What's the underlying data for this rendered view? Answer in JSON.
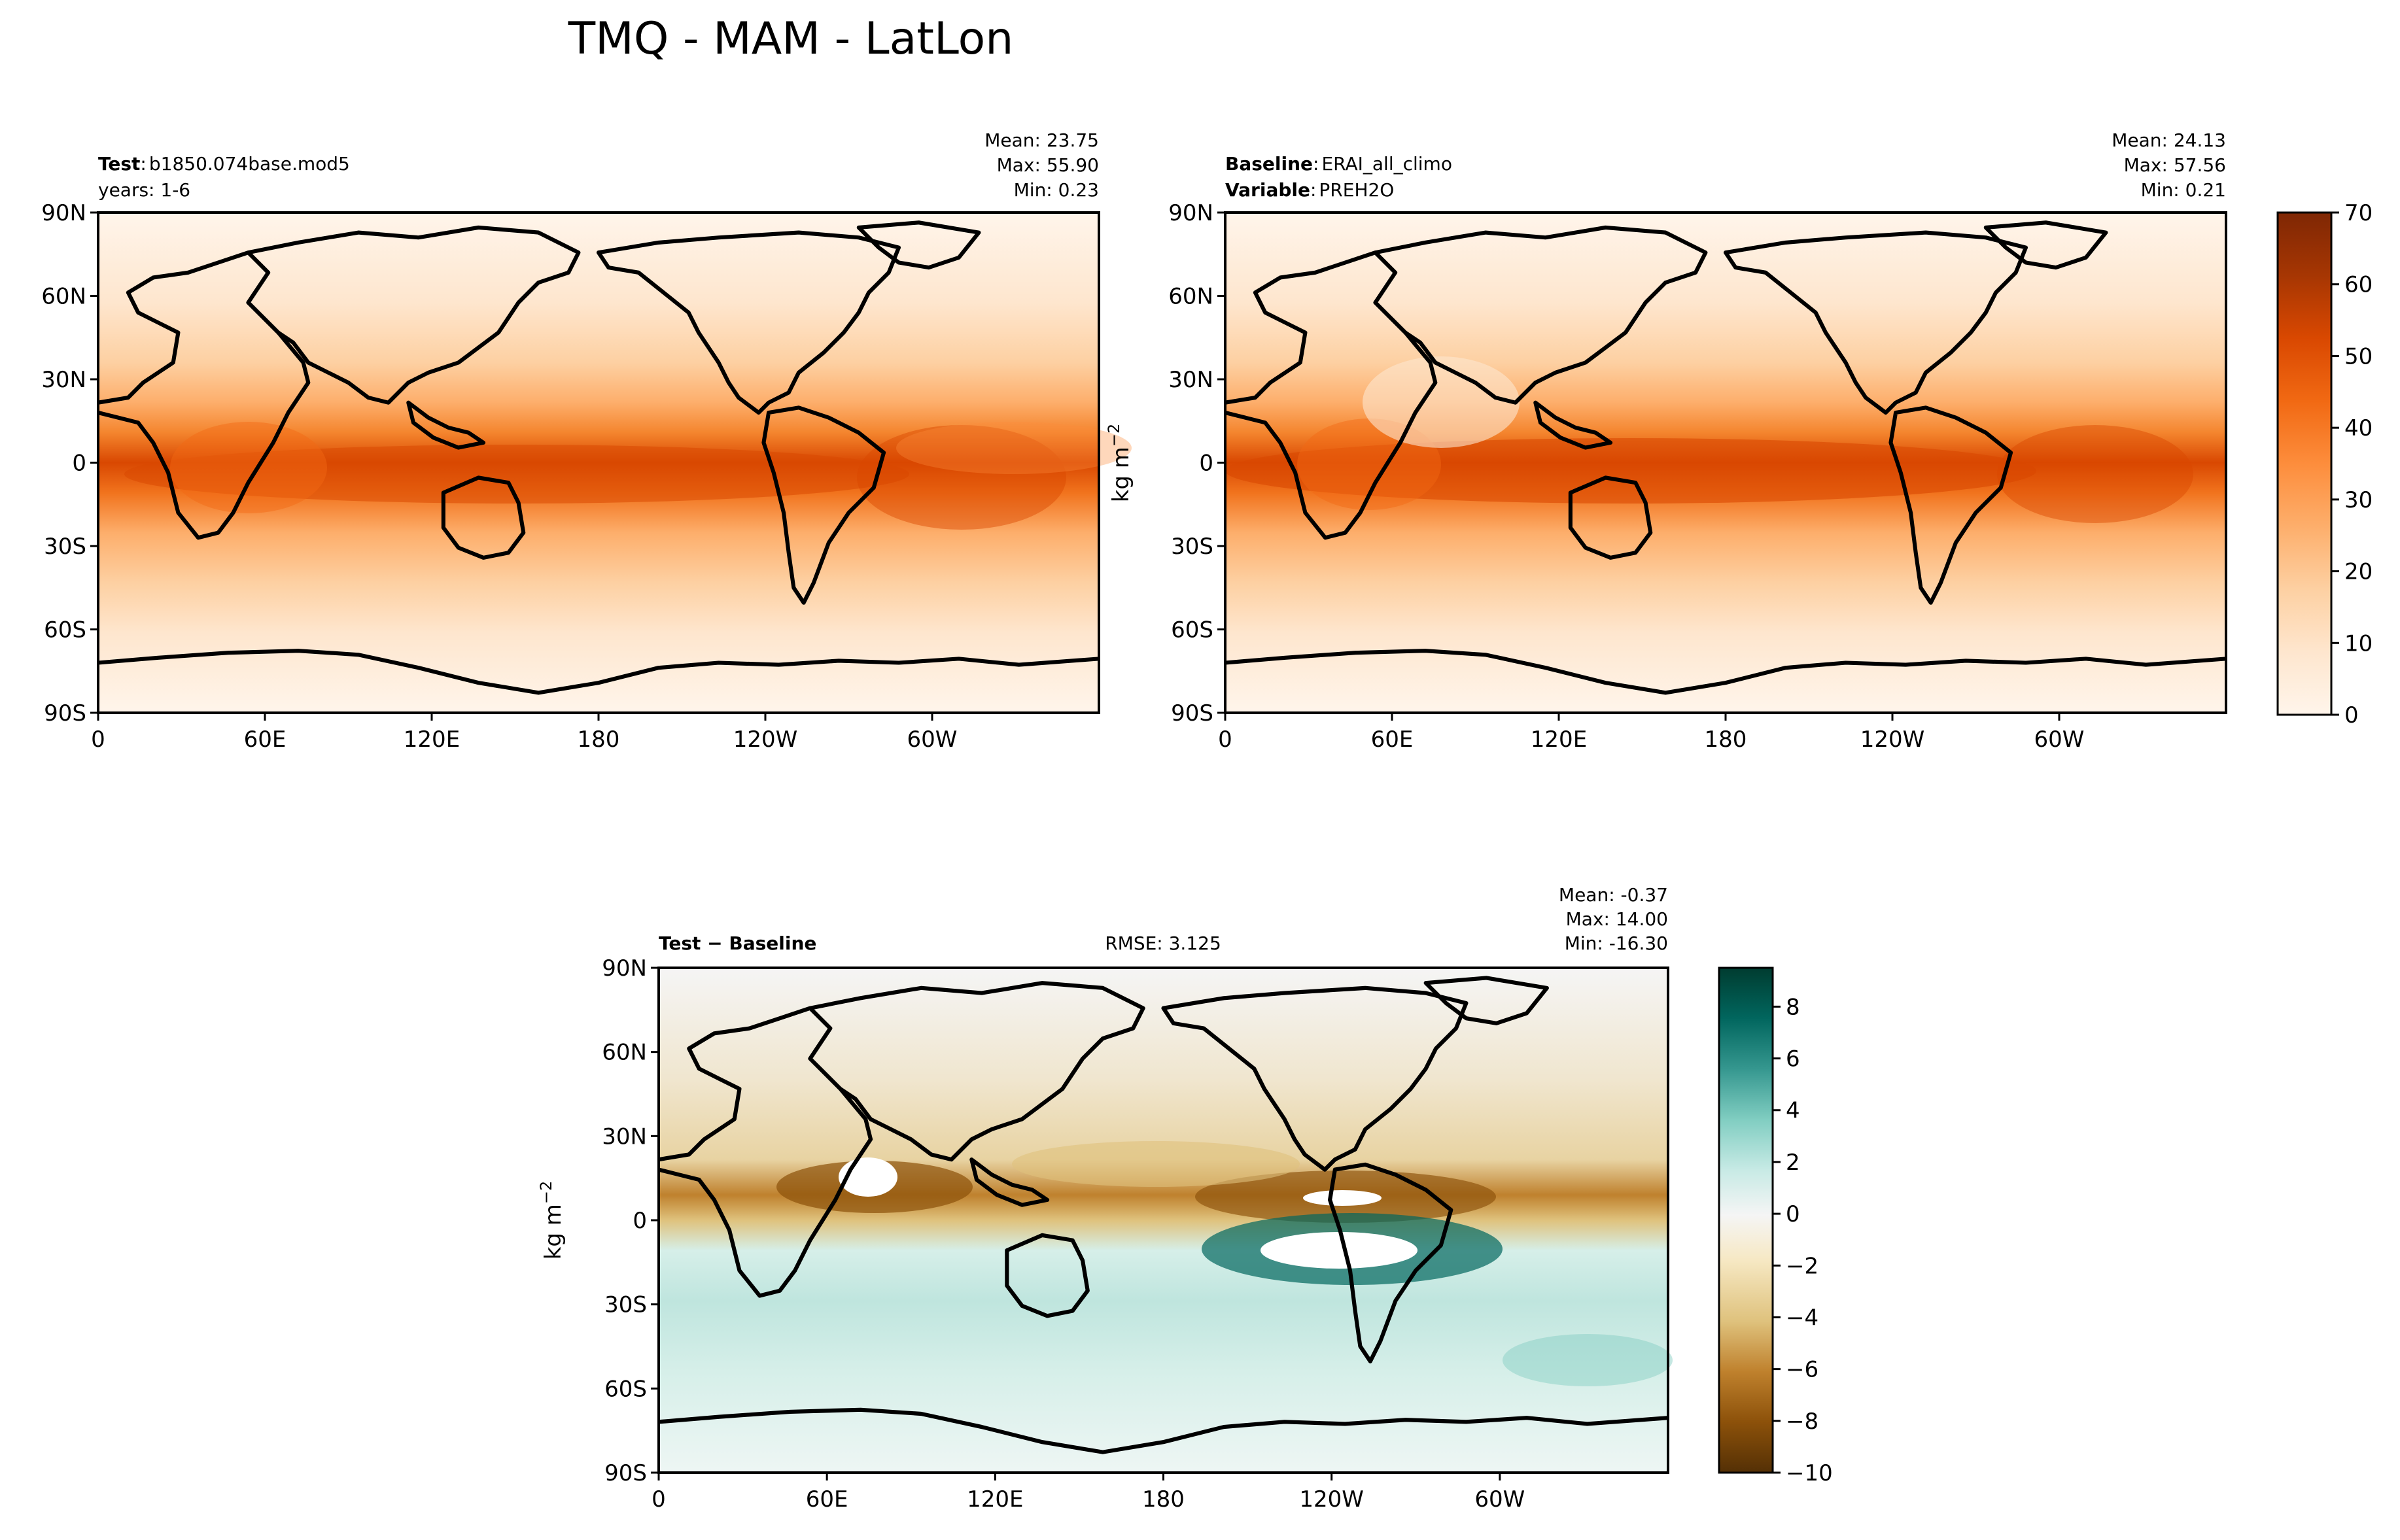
{
  "figure": {
    "title": "TMQ - MAM - LatLon"
  },
  "chart_data": [
    {
      "type": "heatmap",
      "panel": "test",
      "label_bold": "Test",
      "label_sep": ":",
      "label_value": "b1850.074base.mod5",
      "line2": "years: 1-6",
      "stats": [
        "Mean: 23.75",
        "Max: 55.90",
        "Min:  0.23"
      ],
      "x_ticks": [
        "0",
        "60E",
        "120E",
        "180",
        "120W",
        "60W"
      ],
      "x_values": [
        0,
        60,
        120,
        180,
        240,
        300
      ],
      "y_ticks": [
        "90N",
        "60N",
        "30N",
        "0",
        "30S",
        "60S",
        "90S"
      ],
      "y_values": [
        90,
        60,
        30,
        0,
        -30,
        -60,
        -90
      ],
      "xlim": [
        0,
        360
      ],
      "ylim": [
        -90,
        90
      ]
    },
    {
      "type": "heatmap",
      "panel": "baseline",
      "label_bold": "Baseline",
      "label_sep": ":",
      "label_value": "ERAI_all_climo",
      "line2_bold": "Variable",
      "line2_value": "PREH2O",
      "stats": [
        "Mean: 24.13",
        "Max: 57.56",
        "Min:  0.21"
      ],
      "ylabel": "kg m",
      "ylabel_sup": "−2",
      "x_ticks": [
        "0",
        "60E",
        "120E",
        "180",
        "120W",
        "60W"
      ],
      "x_values": [
        0,
        60,
        120,
        180,
        240,
        300
      ],
      "y_ticks": [
        "90N",
        "60N",
        "30N",
        "0",
        "30S",
        "60S",
        "90S"
      ],
      "y_values": [
        90,
        60,
        30,
        0,
        -30,
        -60,
        -90
      ],
      "xlim": [
        0,
        360
      ],
      "ylim": [
        -90,
        90
      ],
      "colorbar": {
        "ticks": [
          "0",
          "10",
          "20",
          "30",
          "40",
          "50",
          "60",
          "70"
        ],
        "values": [
          0,
          10,
          20,
          30,
          40,
          50,
          60,
          70
        ],
        "range": [
          0,
          70
        ],
        "colors": [
          "#fff5eb",
          "#fee6ce",
          "#fdd0a2",
          "#fdae6b",
          "#fd8d3c",
          "#f16913",
          "#d94801",
          "#a63603",
          "#7f2704"
        ]
      }
    },
    {
      "type": "heatmap",
      "panel": "difference",
      "label_bold": "Test − Baseline",
      "rmse": "RMSE: 3.125",
      "stats": [
        "Mean: -0.37",
        "Max: 14.00",
        "Min: -16.30"
      ],
      "ylabel": "kg m",
      "ylabel_sup": "−2",
      "x_ticks": [
        "0",
        "60E",
        "120E",
        "180",
        "120W",
        "60W"
      ],
      "x_values": [
        0,
        60,
        120,
        180,
        240,
        300
      ],
      "y_ticks": [
        "90N",
        "60N",
        "30N",
        "0",
        "30S",
        "60S",
        "90S"
      ],
      "y_values": [
        90,
        60,
        30,
        0,
        -30,
        -60,
        -90
      ],
      "xlim": [
        0,
        360
      ],
      "ylim": [
        -90,
        90
      ],
      "colorbar": {
        "ticks": [
          "−10",
          "−8",
          "−6",
          "−4",
          "−2",
          "0",
          "2",
          "4",
          "6",
          "8"
        ],
        "values": [
          -10,
          -8,
          -6,
          -4,
          -2,
          0,
          2,
          4,
          6,
          8
        ],
        "range": [
          -10,
          9.5
        ],
        "colors": [
          "#543005",
          "#8c510a",
          "#bf812d",
          "#dfc27d",
          "#f6e8c3",
          "#f5f5f5",
          "#c7eae5",
          "#80cdc1",
          "#35978f",
          "#01665e",
          "#003c30"
        ]
      }
    }
  ]
}
